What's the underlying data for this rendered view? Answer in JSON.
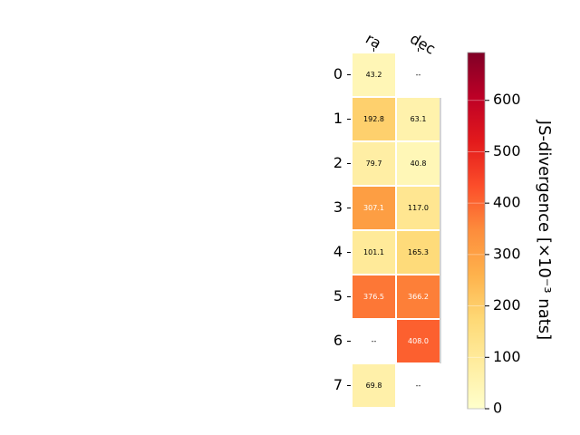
{
  "chart_data": {
    "type": "heatmap",
    "columns": [
      "ra",
      "dec"
    ],
    "rows": [
      "0",
      "1",
      "2",
      "3",
      "4",
      "5",
      "6",
      "7"
    ],
    "values": [
      [
        43.2,
        null
      ],
      [
        192.8,
        63.1
      ],
      [
        79.7,
        40.8
      ],
      [
        307.1,
        117.0
      ],
      [
        101.1,
        165.3
      ],
      [
        376.5,
        366.2
      ],
      [
        null,
        408.0
      ],
      [
        69.8,
        null
      ]
    ],
    "missing_label": "--",
    "colorbar": {
      "label": "JS-divergence [×10⁻³ nats]",
      "range": [
        0,
        693
      ],
      "ticks": [
        0,
        100,
        200,
        300,
        400,
        500,
        600
      ],
      "colormap": "YlOrRd"
    },
    "grid": false
  }
}
